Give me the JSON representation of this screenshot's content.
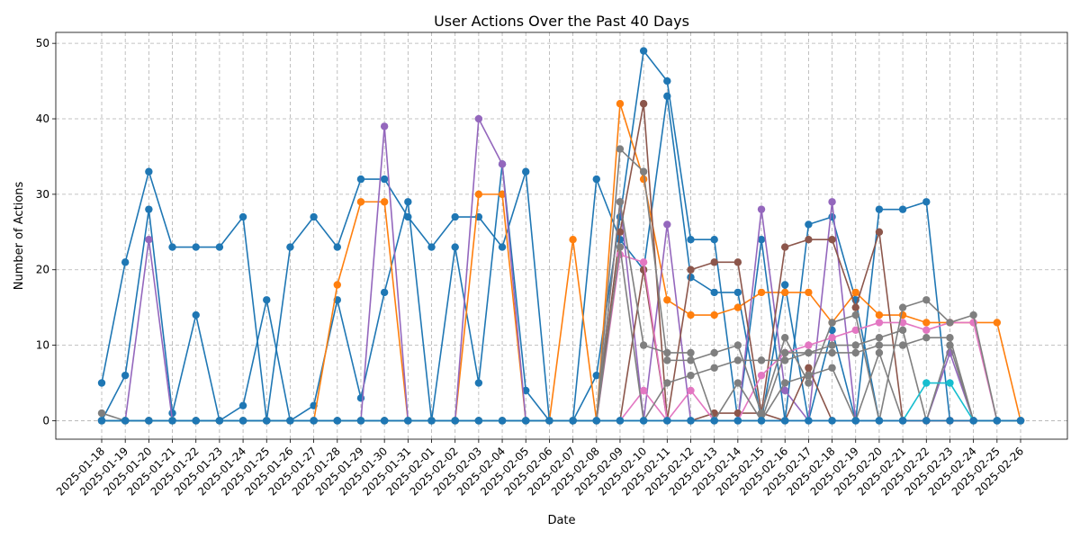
{
  "chart_data": {
    "type": "line",
    "title": "User Actions Over the Past 40 Days",
    "xlabel": "Date",
    "ylabel": "Number of Actions",
    "ylim": [
      -2.45,
      51.45
    ],
    "yticks": [
      0,
      10,
      20,
      30,
      40,
      50
    ],
    "grid": true,
    "legend": "none",
    "x": [
      "2025-01-18",
      "2025-01-19",
      "2025-01-20",
      "2025-01-21",
      "2025-01-22",
      "2025-01-23",
      "2025-01-24",
      "2025-01-25",
      "2025-01-26",
      "2025-01-27",
      "2025-01-28",
      "2025-01-29",
      "2025-01-30",
      "2025-01-31",
      "2025-02-01",
      "2025-02-02",
      "2025-02-03",
      "2025-02-04",
      "2025-02-05",
      "2025-02-06",
      "2025-02-07",
      "2025-02-08",
      "2025-02-09",
      "2025-02-10",
      "2025-02-11",
      "2025-02-12",
      "2025-02-13",
      "2025-02-14",
      "2025-02-15",
      "2025-02-16",
      "2025-02-17",
      "2025-02-18",
      "2025-02-19",
      "2025-02-20",
      "2025-02-21",
      "2025-02-22",
      "2025-02-23",
      "2025-02-24",
      "2025-02-25",
      "2025-02-26"
    ],
    "series": [
      {
        "color": "#1f77b4",
        "values": [
          5,
          21,
          33,
          23,
          23,
          23,
          27,
          0,
          23,
          27,
          23,
          32,
          32,
          27,
          23,
          27,
          27,
          23,
          33,
          0,
          0,
          32,
          24,
          20,
          43,
          19,
          17,
          17,
          0,
          18,
          0,
          12,
          0,
          28,
          28,
          29,
          0,
          0,
          0,
          0
        ]
      },
      {
        "color": "#1f77b4",
        "values": [
          0,
          6,
          28,
          1,
          14,
          0,
          2,
          16,
          0,
          2,
          16,
          3,
          17,
          29,
          0,
          23,
          5,
          34,
          4,
          0,
          0,
          6,
          27,
          49,
          45,
          24,
          24,
          0,
          24,
          0,
          26,
          27,
          16,
          0,
          0,
          0,
          0,
          0,
          0,
          0
        ]
      },
      {
        "color": "#ff7f0e",
        "values": [
          0,
          0,
          0,
          0,
          0,
          0,
          0,
          0,
          0,
          0,
          18,
          29,
          29,
          0,
          0,
          0,
          30,
          30,
          0,
          0,
          24,
          0,
          42,
          32,
          16,
          14,
          14,
          15,
          17,
          17,
          17,
          13,
          17,
          14,
          14,
          13,
          13,
          13,
          13,
          0
        ]
      },
      {
        "color": "#9467bd",
        "values": [
          0,
          0,
          24,
          0,
          0,
          0,
          0,
          0,
          0,
          0,
          0,
          0,
          39,
          0,
          0,
          0,
          40,
          34,
          0,
          0,
          0,
          0,
          29,
          0,
          26,
          0,
          0,
          0,
          28,
          4,
          0,
          29,
          0,
          0,
          0,
          0,
          9,
          0,
          0,
          0
        ]
      },
      {
        "color": "#8c564b",
        "values": [
          0,
          0,
          0,
          0,
          0,
          0,
          0,
          0,
          0,
          0,
          0,
          0,
          0,
          0,
          0,
          0,
          0,
          0,
          0,
          0,
          0,
          0,
          25,
          42,
          0,
          20,
          21,
          21,
          1,
          23,
          24,
          24,
          15,
          25,
          0,
          0,
          0,
          0,
          0,
          0
        ]
      },
      {
        "color": "#8c564b",
        "values": [
          0,
          0,
          0,
          0,
          0,
          0,
          0,
          0,
          0,
          0,
          0,
          0,
          0,
          0,
          0,
          0,
          0,
          0,
          0,
          0,
          0,
          0,
          0,
          20,
          0,
          0,
          1,
          1,
          1,
          0,
          7,
          0,
          0,
          0,
          0,
          0,
          0,
          0,
          0,
          0
        ]
      },
      {
        "color": "#e377c2",
        "values": [
          0,
          0,
          0,
          0,
          0,
          0,
          0,
          0,
          0,
          0,
          0,
          0,
          0,
          0,
          0,
          0,
          0,
          0,
          0,
          0,
          0,
          0,
          22,
          21,
          0,
          4,
          0,
          0,
          6,
          9,
          10,
          11,
          12,
          13,
          13,
          12,
          13,
          13,
          0,
          0
        ]
      },
      {
        "color": "#e377c2",
        "values": [
          0,
          0,
          0,
          0,
          0,
          0,
          0,
          0,
          0,
          0,
          0,
          0,
          0,
          0,
          0,
          0,
          0,
          0,
          0,
          0,
          0,
          0,
          0,
          4,
          0,
          0,
          0,
          0,
          0,
          0,
          0,
          0,
          0,
          0,
          0,
          0,
          0,
          0,
          0,
          0
        ]
      },
      {
        "color": "#7f7f7f",
        "values": [
          1,
          0,
          0,
          0,
          0,
          0,
          0,
          0,
          0,
          0,
          0,
          0,
          0,
          0,
          0,
          0,
          0,
          0,
          0,
          0,
          0,
          0,
          36,
          33,
          8,
          8,
          9,
          10,
          1,
          11,
          5,
          13,
          14,
          0,
          15,
          16,
          13,
          14,
          0,
          0
        ]
      },
      {
        "color": "#7f7f7f",
        "values": [
          0,
          0,
          0,
          0,
          0,
          0,
          0,
          0,
          0,
          0,
          0,
          0,
          0,
          0,
          0,
          0,
          0,
          0,
          0,
          0,
          0,
          0,
          29,
          10,
          9,
          9,
          0,
          5,
          0,
          9,
          9,
          10,
          10,
          11,
          12,
          0,
          0,
          0,
          0,
          0
        ]
      },
      {
        "color": "#7f7f7f",
        "values": [
          0,
          0,
          0,
          0,
          0,
          0,
          0,
          0,
          0,
          0,
          0,
          0,
          0,
          0,
          0,
          0,
          0,
          0,
          0,
          0,
          0,
          0,
          23,
          0,
          5,
          6,
          7,
          8,
          8,
          8,
          9,
          9,
          9,
          10,
          10,
          11,
          11,
          0,
          0,
          0
        ]
      },
      {
        "color": "#7f7f7f",
        "values": [
          0,
          0,
          0,
          0,
          0,
          0,
          0,
          0,
          0,
          0,
          0,
          0,
          0,
          0,
          0,
          0,
          0,
          0,
          0,
          0,
          0,
          0,
          0,
          0,
          0,
          0,
          0,
          0,
          0,
          5,
          6,
          7,
          0,
          9,
          0,
          0,
          10,
          0,
          0,
          0
        ]
      },
      {
        "color": "#17becf",
        "values": [
          0,
          0,
          0,
          0,
          0,
          0,
          0,
          0,
          0,
          0,
          0,
          0,
          0,
          0,
          0,
          0,
          0,
          0,
          0,
          0,
          0,
          0,
          0,
          0,
          0,
          0,
          0,
          0,
          0,
          0,
          0,
          0,
          0,
          0,
          0,
          5,
          5,
          0,
          0,
          0
        ]
      },
      {
        "color": "#1f77b4",
        "values": [
          0,
          0,
          0,
          0,
          0,
          0,
          0,
          0,
          0,
          0,
          0,
          0,
          0,
          0,
          0,
          0,
          0,
          0,
          0,
          0,
          0,
          0,
          0,
          0,
          0,
          0,
          0,
          0,
          0,
          0,
          0,
          0,
          0,
          0,
          0,
          0,
          0,
          0,
          0,
          0
        ]
      }
    ]
  }
}
